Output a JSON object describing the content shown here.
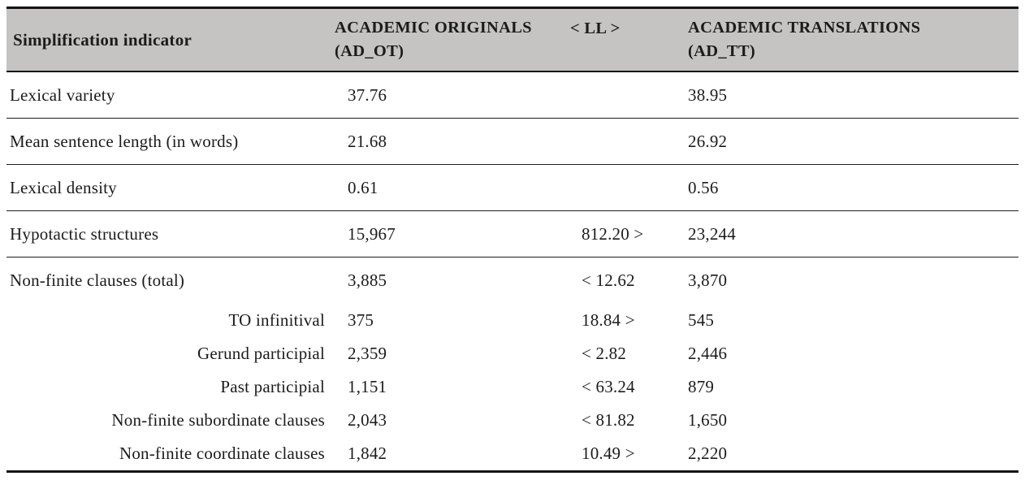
{
  "table": {
    "header": {
      "indicator": "Simplification indicator",
      "originals_line1": "ACADEMIC ORIGINALS",
      "originals_line2": "(AD_OT)",
      "ll": "< LL >",
      "translations_line1": "ACADEMIC TRANSLATIONS",
      "translations_line2": "(AD_TT)"
    },
    "rows": [
      {
        "indicator": "Lexical variety",
        "ad_ot": "37.76",
        "ll": "",
        "ad_tt": "38.95"
      },
      {
        "indicator": "Mean sentence length (in words)",
        "ad_ot": "21.68",
        "ll": "",
        "ad_tt": "26.92"
      },
      {
        "indicator": "Lexical density",
        "ad_ot": "0.61",
        "ll": "",
        "ad_tt": "0.56"
      },
      {
        "indicator": "Hypotactic structures",
        "ad_ot": "15,967",
        "ll": "812.20 >",
        "ad_tt": "23,244"
      },
      {
        "indicator": "Non-finite clauses (total)",
        "ad_ot": "3,885",
        "ll": "< 12.62",
        "ad_tt": "3,870"
      },
      {
        "indicator": "TO infinitival",
        "ad_ot": "375",
        "ll": "18.84 >",
        "ad_tt": "545"
      },
      {
        "indicator": "Gerund participial",
        "ad_ot": "2,359",
        "ll": "< 2.82",
        "ad_tt": "2,446"
      },
      {
        "indicator": "Past participial",
        "ad_ot": "1,151",
        "ll": "< 63.24",
        "ad_tt": "879"
      },
      {
        "indicator": "Non-finite subordinate clauses",
        "ad_ot": "2,043",
        "ll": "< 81.82",
        "ad_tt": "1,650"
      },
      {
        "indicator": "Non-finite coordinate clauses",
        "ad_ot": "1,842",
        "ll": "10.49 >",
        "ad_tt": "2,220"
      }
    ]
  },
  "colors": {
    "header_background": "#c5c4c3",
    "text": "#1b1b1b",
    "border": "#141414",
    "page_background": "#ffffff"
  }
}
